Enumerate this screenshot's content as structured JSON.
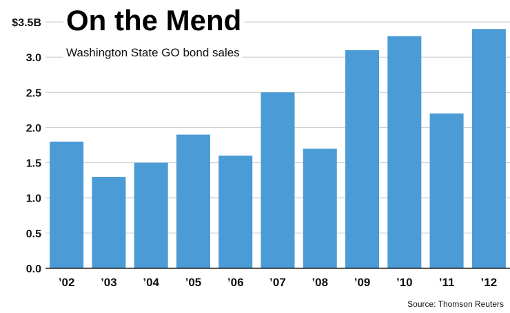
{
  "colors": {
    "bar": "#4A9BD6",
    "grid": "#c8c8c8",
    "text": "#111111"
  },
  "chart_data": {
    "type": "bar",
    "title": "On the Mend",
    "subtitle": "Washington State GO bond sales",
    "categories": [
      "’02",
      "’03",
      "’04",
      "’05",
      "’06",
      "’07",
      "’08",
      "’09",
      "’10",
      "’11",
      "’12"
    ],
    "values": [
      1.8,
      1.3,
      1.5,
      1.9,
      1.6,
      2.5,
      1.7,
      3.1,
      3.3,
      2.2,
      3.4
    ],
    "yticks": [
      0.0,
      0.5,
      1.0,
      1.5,
      2.0,
      2.5,
      3.0,
      3.5
    ],
    "ytick_labels": [
      "0.0",
      "0.5",
      "1.0",
      "1.5",
      "2.0",
      "2.5",
      "3.0",
      "$3.5B"
    ],
    "ylim": [
      0,
      3.5
    ],
    "xlabel": "",
    "ylabel": "",
    "grid": true,
    "source": "Source: Thomson Reuters"
  }
}
